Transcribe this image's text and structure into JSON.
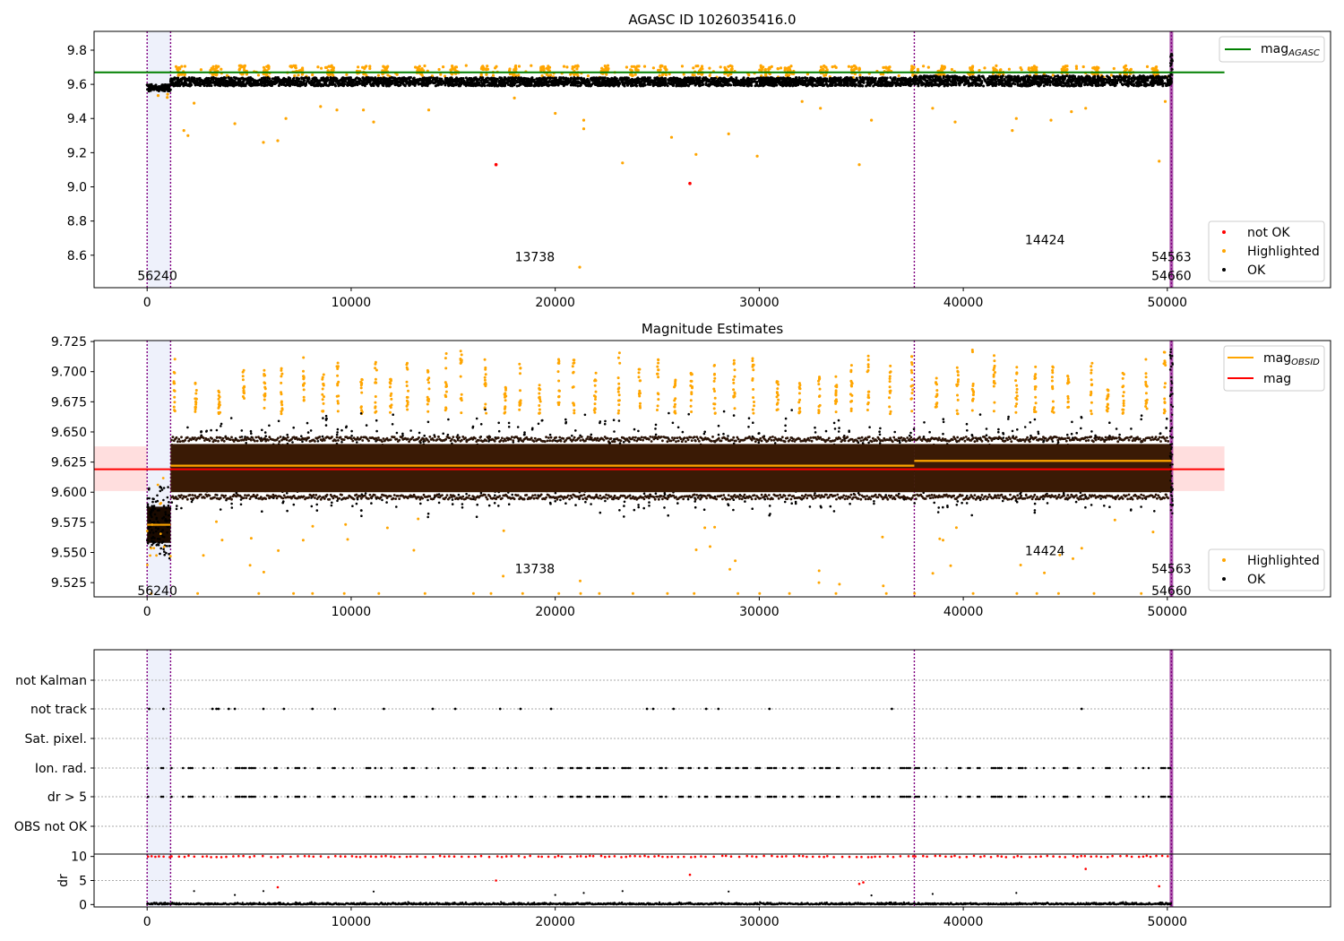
{
  "chart_data": [
    {
      "type": "scatter",
      "title": "AGASC ID 1026035416.0",
      "xlim": [
        -2600,
        58000
      ],
      "ylim": [
        8.41,
        9.91
      ],
      "xticks": [
        0,
        10000,
        20000,
        30000,
        40000,
        50000
      ],
      "yticks": [
        8.6,
        8.8,
        9.0,
        9.2,
        9.4,
        9.6,
        9.8
      ],
      "ytick_labels": [
        "8.6",
        "8.8",
        "9.0",
        "9.2",
        "9.4",
        "9.6",
        "9.8"
      ],
      "obsid_boundaries": [
        0,
        1150,
        37600,
        50200
      ],
      "obsid_labels": [
        {
          "text": "56240",
          "x": 500,
          "y": 8.48
        },
        {
          "text": "13738",
          "x": 19000,
          "y": 8.59
        },
        {
          "text": "14424",
          "x": 44000,
          "y": 8.69
        },
        {
          "text": "54563",
          "x": 50200,
          "y": 8.59
        },
        {
          "text": "54660",
          "x": 50200,
          "y": 8.48
        }
      ],
      "series": [
        {
          "name": "mag_AGASC",
          "type": "hline",
          "y": 9.67,
          "xrange": [
            -2600,
            52800
          ],
          "color": "#008000"
        },
        {
          "name": "not OK",
          "color": "#ff0000",
          "points": [
            [
              17100,
              9.13
            ],
            [
              26600,
              9.02
            ]
          ]
        },
        {
          "name": "Highlighted",
          "color": "#ffa500",
          "band": [
            9.65,
            9.71
          ],
          "outliers": [
            [
              1800,
              9.33
            ],
            [
              2000,
              9.3
            ],
            [
              2300,
              9.49
            ],
            [
              4300,
              9.37
            ],
            [
              5700,
              9.26
            ],
            [
              6400,
              9.27
            ],
            [
              6800,
              9.4
            ],
            [
              8500,
              9.47
            ],
            [
              9300,
              9.45
            ],
            [
              10600,
              9.45
            ],
            [
              11100,
              9.38
            ],
            [
              13800,
              9.45
            ],
            [
              18000,
              9.52
            ],
            [
              20000,
              9.43
            ],
            [
              21400,
              9.39
            ],
            [
              21400,
              9.34
            ],
            [
              23300,
              9.14
            ],
            [
              25700,
              9.29
            ],
            [
              26900,
              9.19
            ],
            [
              28500,
              9.31
            ],
            [
              29900,
              9.18
            ],
            [
              32100,
              9.5
            ],
            [
              33000,
              9.46
            ],
            [
              34900,
              9.13
            ],
            [
              35500,
              9.39
            ],
            [
              21200,
              8.53
            ],
            [
              38500,
              9.46
            ],
            [
              39600,
              9.38
            ],
            [
              42400,
              9.33
            ],
            [
              42600,
              9.4
            ],
            [
              44300,
              9.39
            ],
            [
              45300,
              9.44
            ],
            [
              46000,
              9.46
            ],
            [
              49600,
              9.15
            ],
            [
              49900,
              9.5
            ]
          ]
        },
        {
          "name": "OK",
          "color": "#000000",
          "segments": [
            {
              "x": [
                0,
                1150
              ],
              "y": [
                9.56,
                9.6
              ]
            },
            {
              "x": [
                1150,
                37600
              ],
              "y": [
                9.59,
                9.64
              ]
            },
            {
              "x": [
                37600,
                50200
              ],
              "y": [
                9.59,
                9.65
              ]
            }
          ]
        }
      ],
      "legend_lines": [
        "mag_AGASC"
      ],
      "legend_points": [
        "not OK",
        "Highlighted",
        "OK"
      ],
      "legend_position": "upper right / lower right"
    },
    {
      "type": "scatter",
      "title": "Magnitude Estimates",
      "xlim": [
        -2600,
        58000
      ],
      "ylim": [
        9.5132,
        9.7258
      ],
      "xticks": [
        0,
        10000,
        20000,
        30000,
        40000,
        50000
      ],
      "yticks": [
        9.525,
        9.55,
        9.575,
        9.6,
        9.625,
        9.65,
        9.675,
        9.7,
        9.725
      ],
      "ytick_labels": [
        "9.525",
        "9.550",
        "9.575",
        "9.600",
        "9.625",
        "9.650",
        "9.675",
        "9.700",
        "9.725"
      ],
      "obsid_boundaries": [
        0,
        1150,
        37600,
        50200
      ],
      "obsid_labels": [
        {
          "text": "56240",
          "x": 500,
          "y": 9.5185
        },
        {
          "text": "13738",
          "x": 19000,
          "y": 9.5365
        },
        {
          "text": "14424",
          "x": 44000,
          "y": 9.5515
        },
        {
          "text": "54563",
          "x": 50200,
          "y": 9.5365
        },
        {
          "text": "54660",
          "x": 50200,
          "y": 9.5185
        }
      ],
      "mag": 9.619,
      "mag_band": [
        9.601,
        9.638
      ],
      "mag_obsid": [
        {
          "x": [
            0,
            1150
          ],
          "y": 9.573
        },
        {
          "x": [
            1150,
            37600
          ],
          "y": 9.622
        },
        {
          "x": [
            37600,
            50200
          ],
          "y": 9.626
        }
      ],
      "series": [
        {
          "name": "mag_OBSID",
          "color": "#ffa500"
        },
        {
          "name": "mag",
          "color": "#ff0000"
        },
        {
          "name": "Highlighted",
          "color": "#ffa500",
          "band": [
            9.665,
            9.71
          ]
        },
        {
          "name": "OK",
          "color": "#000000",
          "core": [
            9.6,
            9.64
          ],
          "spread": [
            9.58,
            9.672
          ]
        }
      ],
      "legend_lines": [
        "mag_OBSID",
        "mag"
      ],
      "legend_points": [
        "Highlighted",
        "OK"
      ],
      "legend_position": "upper right / lower right"
    },
    {
      "type": "scatter",
      "title": "",
      "xlim": [
        -2600,
        58000
      ],
      "xticks": [
        0,
        10000,
        20000,
        30000,
        40000,
        50000
      ],
      "flag_categories": [
        "not Kalman",
        "not track",
        "Sat. pixel.",
        "Ion. rad.",
        "dr > 5",
        "OBS not OK"
      ],
      "not_track_x": [
        100,
        800,
        3200,
        3400,
        3500,
        4000,
        4300,
        5700,
        6700,
        8100,
        9200,
        11600,
        14000,
        15100,
        17300,
        18300,
        19800,
        24500,
        24800,
        25800,
        27400,
        28000,
        30500,
        36500,
        45800
      ],
      "ion_rad_dr5_ranges": [
        [
          0,
          1150
        ],
        [
          1150,
          37600
        ],
        [
          37600,
          50200
        ]
      ],
      "dr_panel": {
        "ylabel": "dr",
        "ylim": [
          -0.5,
          10.5
        ],
        "yticks": [
          0,
          5,
          10
        ],
        "red_cap": 10,
        "outliers_red": [
          [
            6400,
            3.6
          ],
          [
            17100,
            5.0
          ],
          [
            26600,
            6.2
          ],
          [
            34900,
            4.3
          ],
          [
            35100,
            4.6
          ],
          [
            46000,
            7.4
          ],
          [
            49600,
            3.8
          ]
        ],
        "outliers_black": [
          [
            2300,
            2.8
          ],
          [
            4300,
            2.0
          ],
          [
            5700,
            2.8
          ],
          [
            11100,
            2.7
          ],
          [
            20000,
            2.0
          ],
          [
            21400,
            2.4
          ],
          [
            23300,
            2.8
          ],
          [
            28500,
            2.7
          ],
          [
            35500,
            1.9
          ],
          [
            38500,
            2.2
          ],
          [
            42600,
            2.4
          ]
        ]
      }
    }
  ]
}
